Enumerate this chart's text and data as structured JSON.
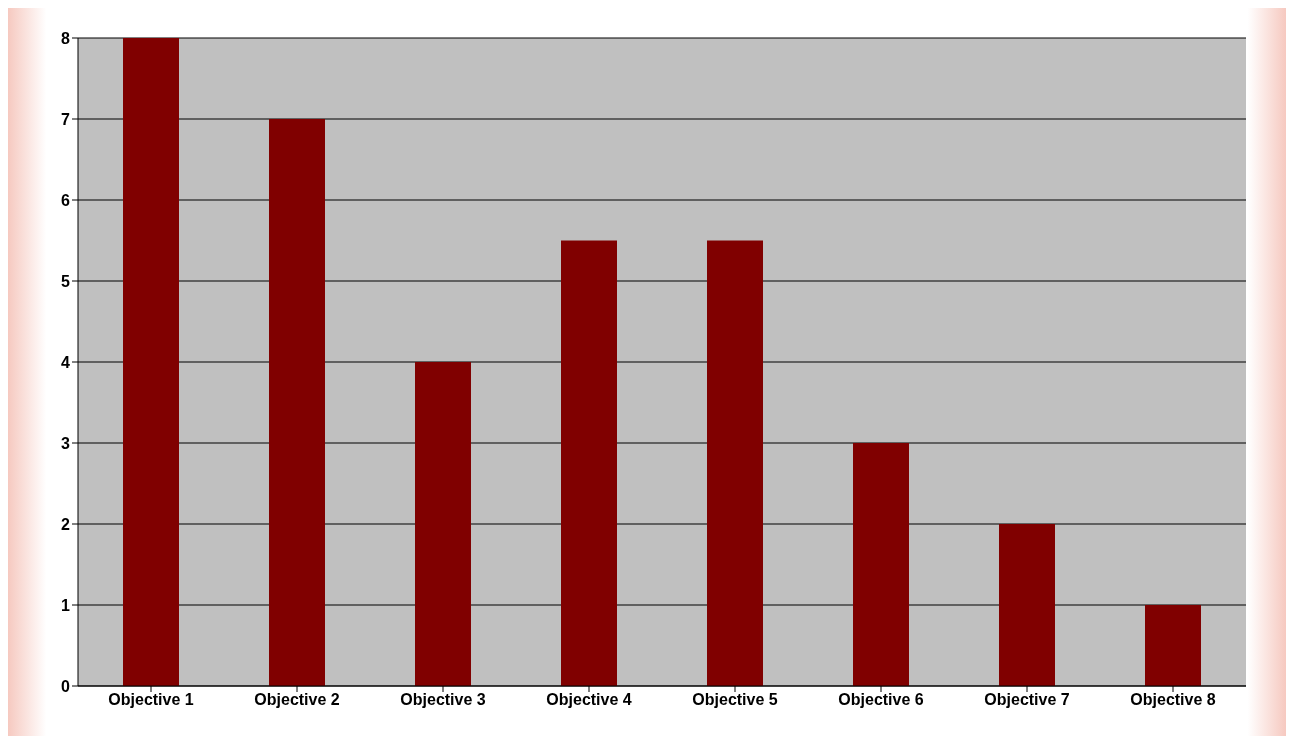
{
  "chart_data": {
    "type": "bar",
    "categories": [
      "Objective 1",
      "Objective 2",
      "Objective 3",
      "Objective 4",
      "Objective 5",
      "Objective 6",
      "Objective 7",
      "Objective 8"
    ],
    "values": [
      8,
      7,
      4,
      5.5,
      5.5,
      3,
      2,
      1
    ],
    "color": "#800000",
    "ylim": [
      0,
      8
    ],
    "yticks": [
      0,
      1,
      2,
      3,
      4,
      5,
      6,
      7,
      8
    ],
    "grid": "y",
    "legend": false
  }
}
